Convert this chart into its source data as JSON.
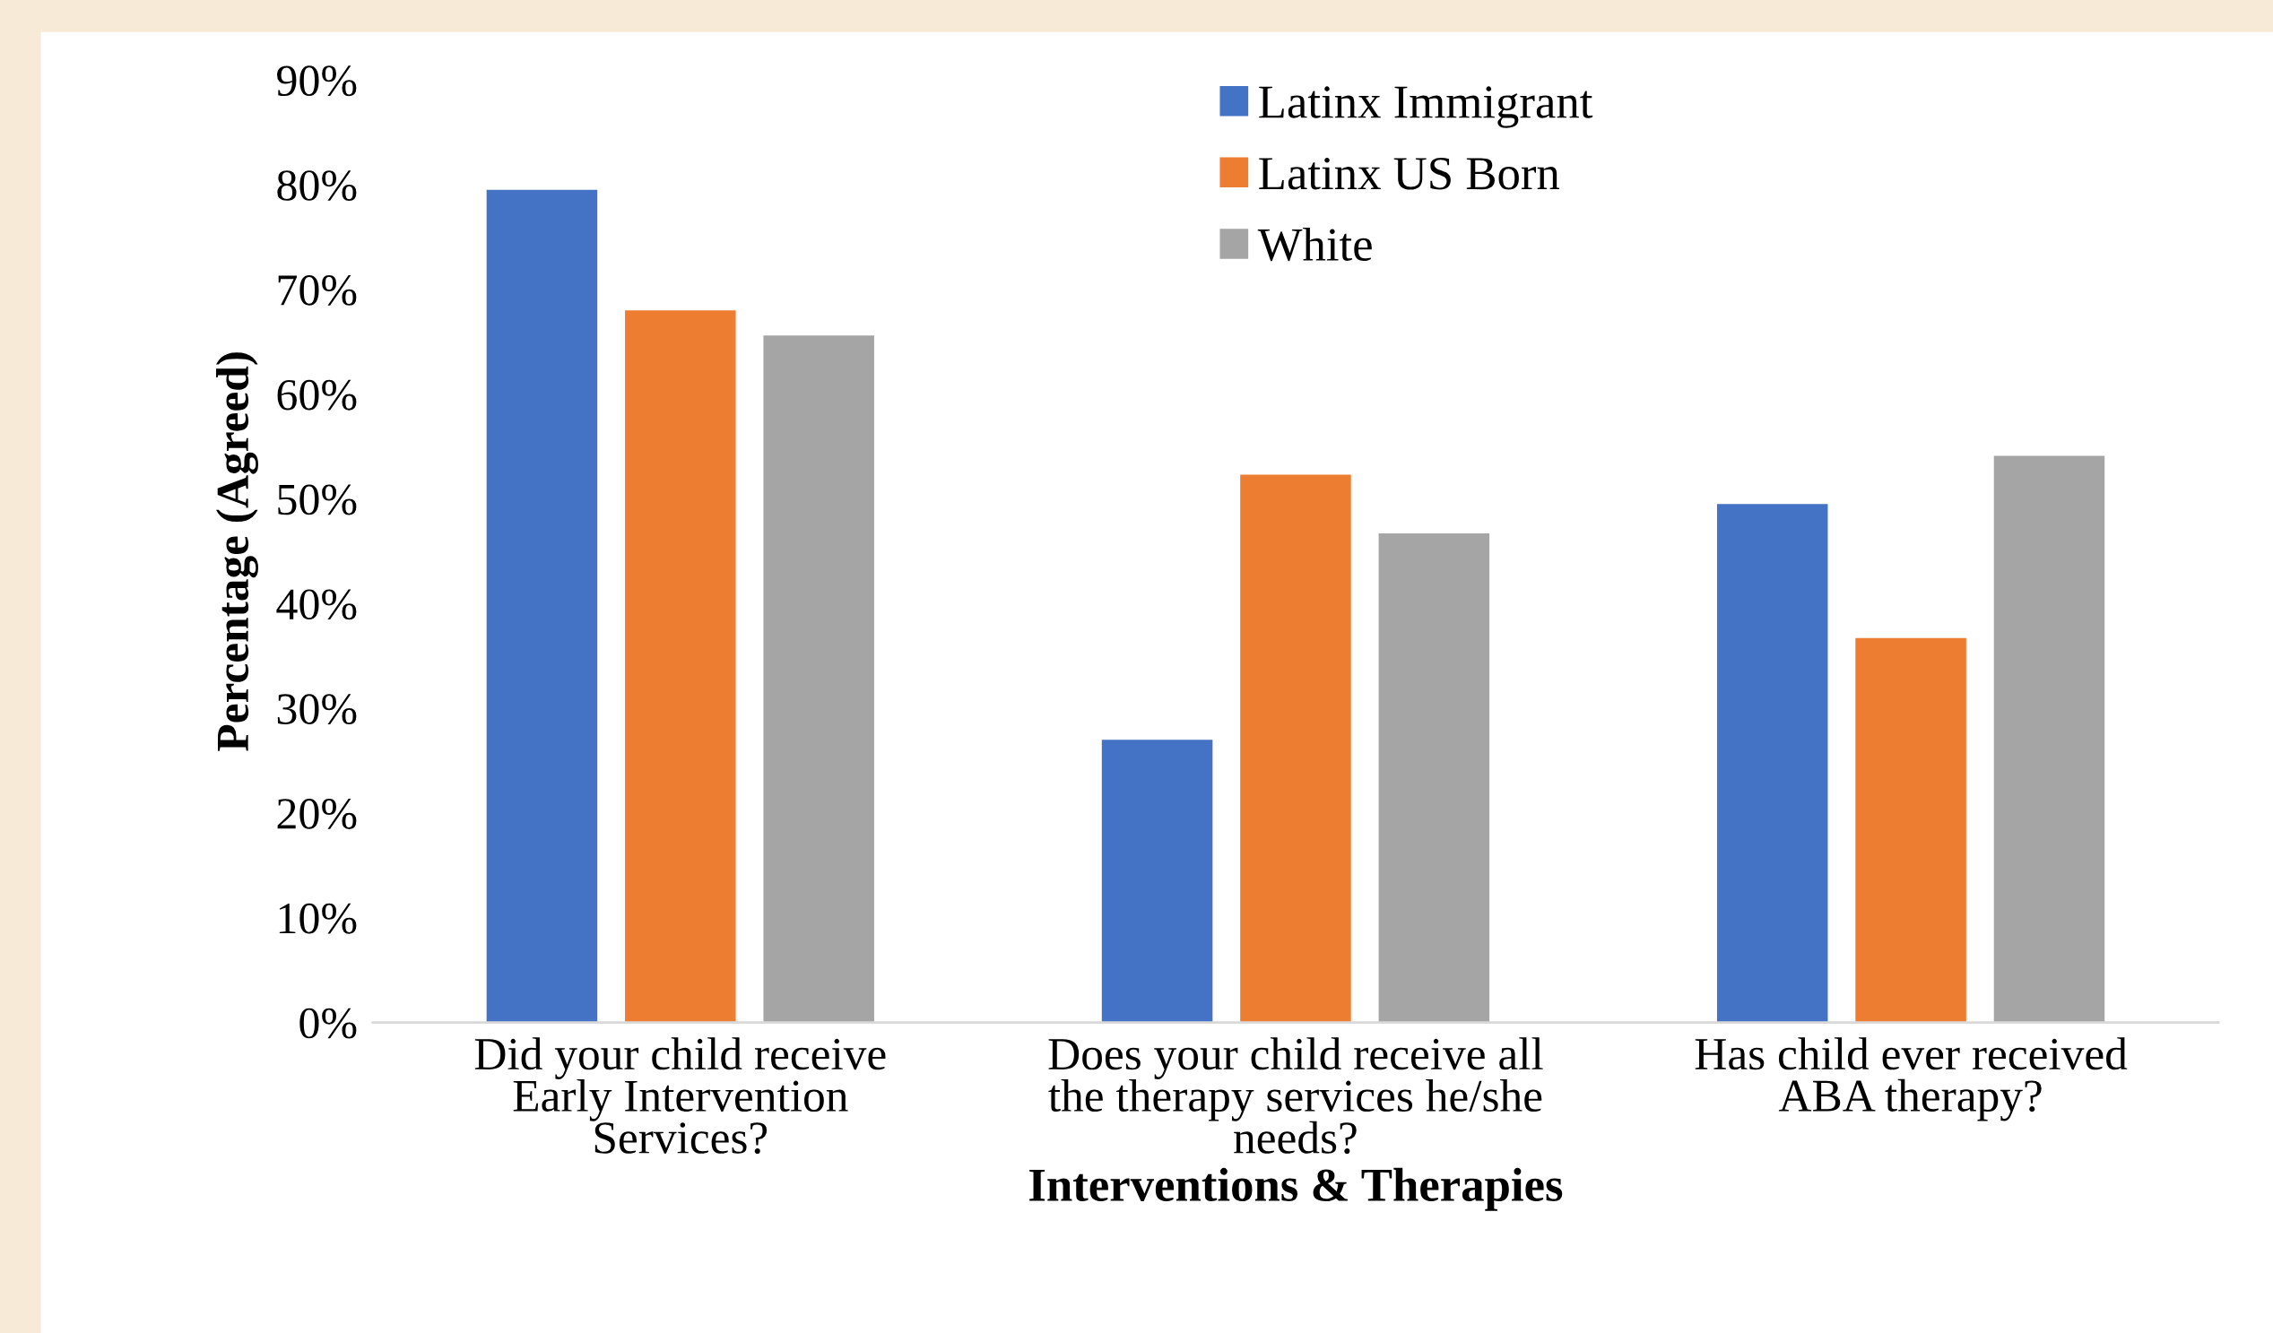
{
  "chart_data": {
    "type": "bar",
    "xlabel": "Interventions & Therapies",
    "ylabel": "Percentage (Agreed)",
    "categories": [
      "Did your child receive\nEarly Intervention\nServices?",
      "Does your child receive all\nthe therapy services he/she\nneeds?",
      "Has child ever received\nABA therapy?"
    ],
    "series": [
      {
        "name": "Latinx Immigrant",
        "color": "#4472c4",
        "values": [
          79.5,
          27,
          49.5
        ]
      },
      {
        "name": "Latinx US Born",
        "color": "#ed7d31",
        "values": [
          68,
          52.3,
          36.7
        ]
      },
      {
        "name": "White",
        "color": "#a5a5a5",
        "values": [
          65.6,
          46.7,
          54.1
        ]
      }
    ],
    "ylim": [
      0,
      90
    ],
    "yticks": [
      {
        "value": 0,
        "label": "0%"
      },
      {
        "value": 10,
        "label": "10%"
      },
      {
        "value": 20,
        "label": "20%"
      },
      {
        "value": 30,
        "label": "30%"
      },
      {
        "value": 40,
        "label": "40%"
      },
      {
        "value": 50,
        "label": "50%"
      },
      {
        "value": 60,
        "label": "60%"
      },
      {
        "value": 70,
        "label": "70%"
      },
      {
        "value": 80,
        "label": "80%"
      },
      {
        "value": 90,
        "label": "90%"
      }
    ],
    "grid": false,
    "legend": "top"
  }
}
